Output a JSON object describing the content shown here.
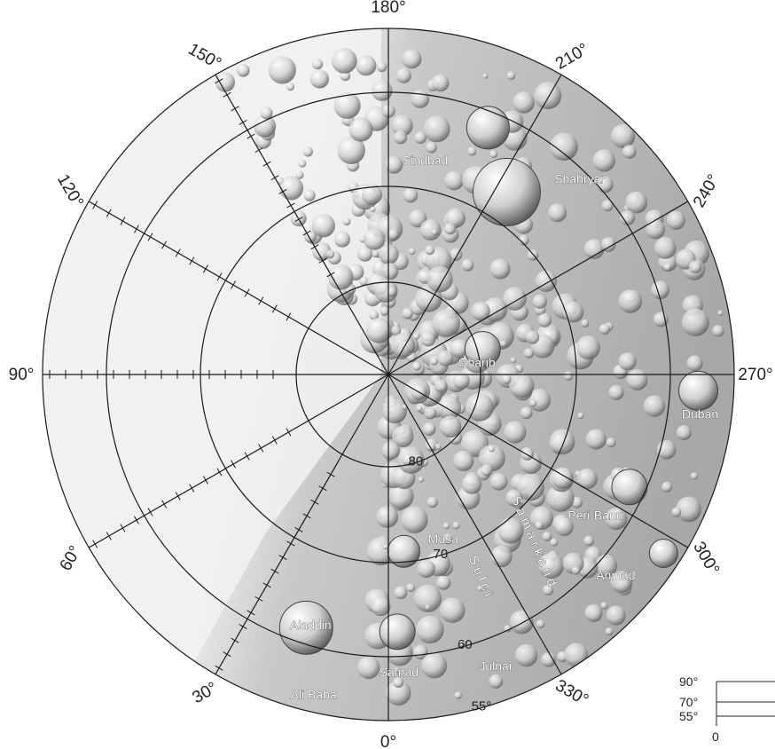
{
  "longitude_labels": [
    {
      "text": "180°",
      "lon": 180
    },
    {
      "text": "210°",
      "lon": 210
    },
    {
      "text": "240°",
      "lon": 240
    },
    {
      "text": "270°",
      "lon": 270
    },
    {
      "text": "300°",
      "lon": 300
    },
    {
      "text": "330°",
      "lon": 330
    },
    {
      "text": "0°",
      "lon": 0
    },
    {
      "text": "30°",
      "lon": 30
    },
    {
      "text": "60°",
      "lon": 60
    },
    {
      "text": "90°",
      "lon": 90
    },
    {
      "text": "120°",
      "lon": 120
    },
    {
      "text": "150°",
      "lon": 150
    }
  ],
  "latitude_labels": [
    {
      "text": "80",
      "lat": 80
    },
    {
      "text": "70",
      "lat": 70
    },
    {
      "text": "60",
      "lat": 60
    },
    {
      "text": "55°",
      "lat": 55
    }
  ],
  "features": [
    {
      "name": "Sindbad",
      "kind": "crater"
    },
    {
      "name": "Shahryar",
      "kind": "crater"
    },
    {
      "name": "Gharib",
      "kind": "crater"
    },
    {
      "name": "Duban",
      "kind": "crater"
    },
    {
      "name": "Peri-Banu",
      "kind": "crater"
    },
    {
      "name": "Ahmad",
      "kind": "crater"
    },
    {
      "name": "Musa",
      "kind": "crater"
    },
    {
      "name": "Aladdin",
      "kind": "crater"
    },
    {
      "name": "Ali Baba",
      "kind": "crater"
    },
    {
      "name": "Samad",
      "kind": "crater"
    },
    {
      "name": "Julnar",
      "kind": "crater"
    }
  ],
  "sulci": {
    "name": "Samarkand Sulci",
    "line1": "Samarkand",
    "line2": "Sulci"
  },
  "scale_key": {
    "labels": [
      "90°",
      "70°",
      "55°"
    ],
    "zero_label": "0"
  },
  "colors": {
    "terrain_light": "#f1f1f1",
    "terrain_mid": "#bdbdbd",
    "terrain_dark": "#6f6f6f",
    "grid": "#1a1a1a"
  }
}
